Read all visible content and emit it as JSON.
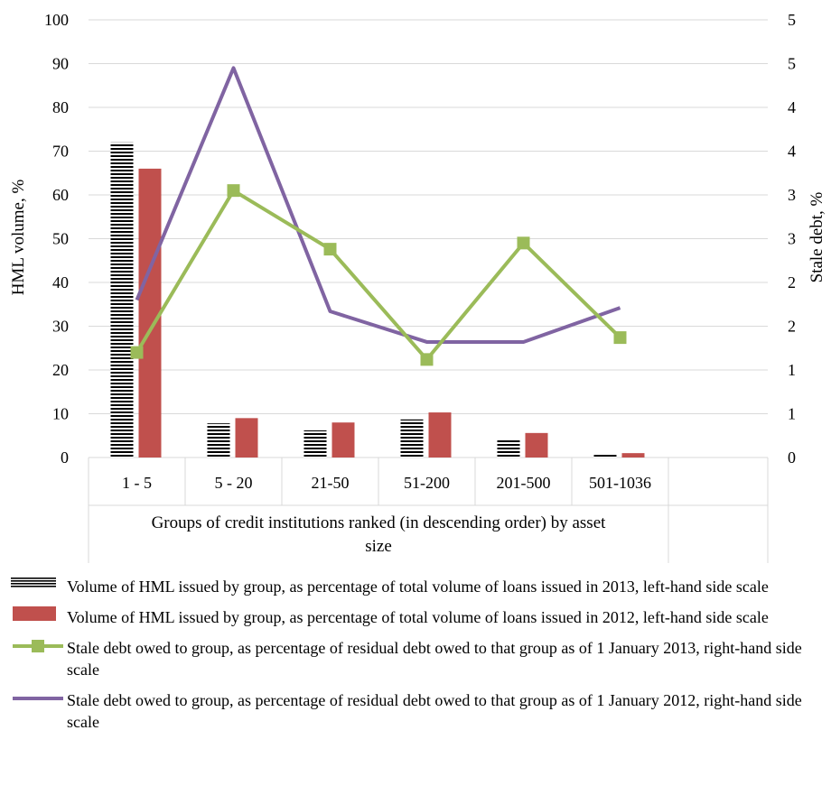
{
  "chart_data": {
    "type": "bar",
    "categories": [
      "1 - 5",
      "5 - 20",
      "21-50",
      "51-200",
      "201-500",
      "501-1036"
    ],
    "xlabel": "Groups of credit institutions ranked (in descending order) by asset size",
    "ylabel_left": "HML volume, %",
    "ylabel_right": "Stale debt, %",
    "ylim_left": [
      0,
      100
    ],
    "ylim_right": [
      0,
      5
    ],
    "left_tick_labels": [
      "0",
      "10",
      "20",
      "30",
      "40",
      "50",
      "60",
      "70",
      "80",
      "90",
      "100"
    ],
    "right_tick_labels": [
      "0",
      "1",
      "1",
      "2",
      "2",
      "3",
      "3",
      "4",
      "4",
      "5",
      "5"
    ],
    "grid": true,
    "legend_position": "bottom",
    "series": [
      {
        "name": "Volume of HML issued by group, as percentage of total volume of loans issued in 2013, left-hand side scale",
        "type": "bar",
        "axis": "left",
        "pattern": "horizontal-stripes",
        "color": "#000000",
        "values": [
          72,
          7.8,
          6.2,
          8.7,
          4.2,
          0.6
        ]
      },
      {
        "name": "Volume of HML issued by group, as percentage of total volume of loans issued in 2012, left-hand side scale",
        "type": "bar",
        "axis": "left",
        "color": "#c0504d",
        "values": [
          66,
          9,
          8,
          10.3,
          5.6,
          1.0
        ]
      },
      {
        "name": "Stale debt owed to group, as percentage of residual debt owed to that group as of 1 January 2013, right-hand side scale",
        "type": "line",
        "axis": "right",
        "color": "#9bbb59",
        "marker": "square",
        "values": [
          1.2,
          3.05,
          2.38,
          1.12,
          2.45,
          1.37
        ]
      },
      {
        "name": "Stale debt owed to group, as percentage of residual debt owed to that group as of 1 January 2012, right-hand side scale",
        "type": "line",
        "axis": "right",
        "color": "#8064a2",
        "values": [
          1.8,
          4.45,
          1.67,
          1.32,
          1.32,
          1.71
        ]
      }
    ]
  }
}
